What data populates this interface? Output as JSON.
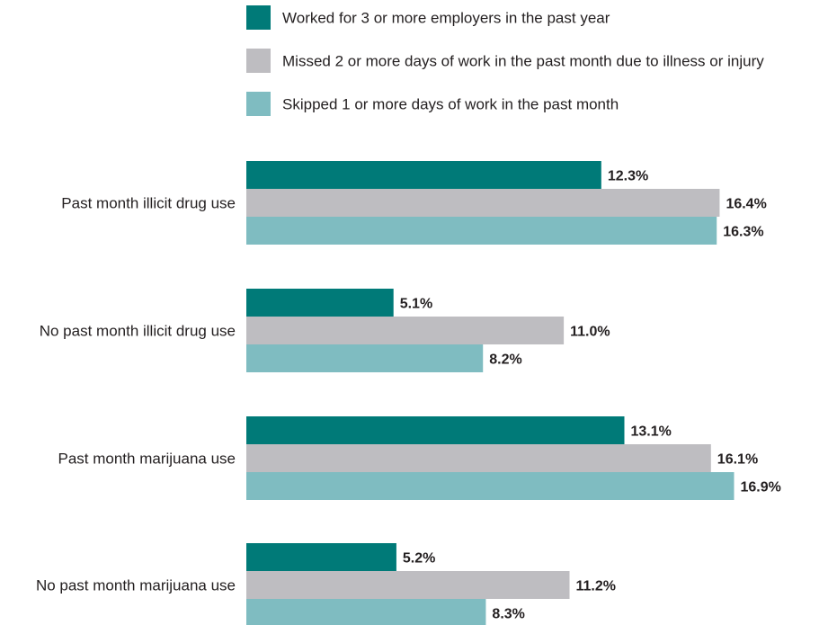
{
  "chart_data": {
    "type": "bar",
    "orientation": "horizontal",
    "value_suffix": "%",
    "legend_position": "top",
    "grid": false,
    "xlim": [
      0,
      20
    ],
    "categories": [
      "Past month illicit drug use",
      "No past month illicit drug use",
      "Past month marijuana use",
      "No past month marijuana use"
    ],
    "series": [
      {
        "name": "Worked for 3 or more employers in the past year",
        "color": "#007a78",
        "values": [
          12.3,
          5.1,
          13.1,
          5.2
        ]
      },
      {
        "name": "Missed 2 or more days of work in the past month due to illness or injury",
        "color": "#bebdc1",
        "values": [
          16.4,
          11.0,
          16.1,
          11.2
        ]
      },
      {
        "name": "Skipped 1 or more days of work in the past month",
        "color": "#7fbcc1",
        "values": [
          16.3,
          8.2,
          16.9,
          8.3
        ]
      }
    ],
    "value_labels": [
      [
        "12.3%",
        "5.1%",
        "13.1%",
        "5.2%"
      ],
      [
        "16.4%",
        "11.0%",
        "16.1%",
        "11.2%"
      ],
      [
        "16.3%",
        "8.2%",
        "16.9%",
        "8.3%"
      ]
    ]
  }
}
